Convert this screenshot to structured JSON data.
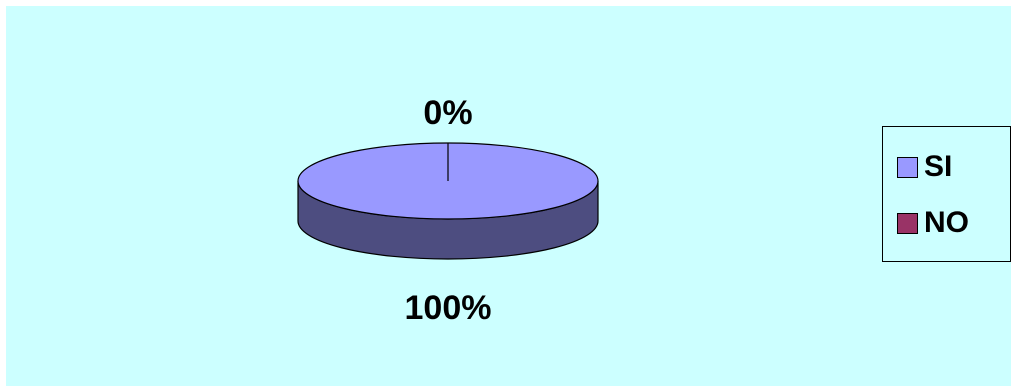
{
  "chart_data": {
    "type": "pie",
    "style": "3d",
    "slices": [
      {
        "label": "SI",
        "value": 100,
        "display": "100%",
        "color": "#9999ff",
        "side_color": "#4d4d80"
      },
      {
        "label": "NO",
        "value": 0,
        "display": "0%",
        "color": "#993366"
      }
    ],
    "legend": {
      "position": "right",
      "entries": [
        "SI",
        "NO"
      ]
    },
    "background": "#ccffff"
  }
}
